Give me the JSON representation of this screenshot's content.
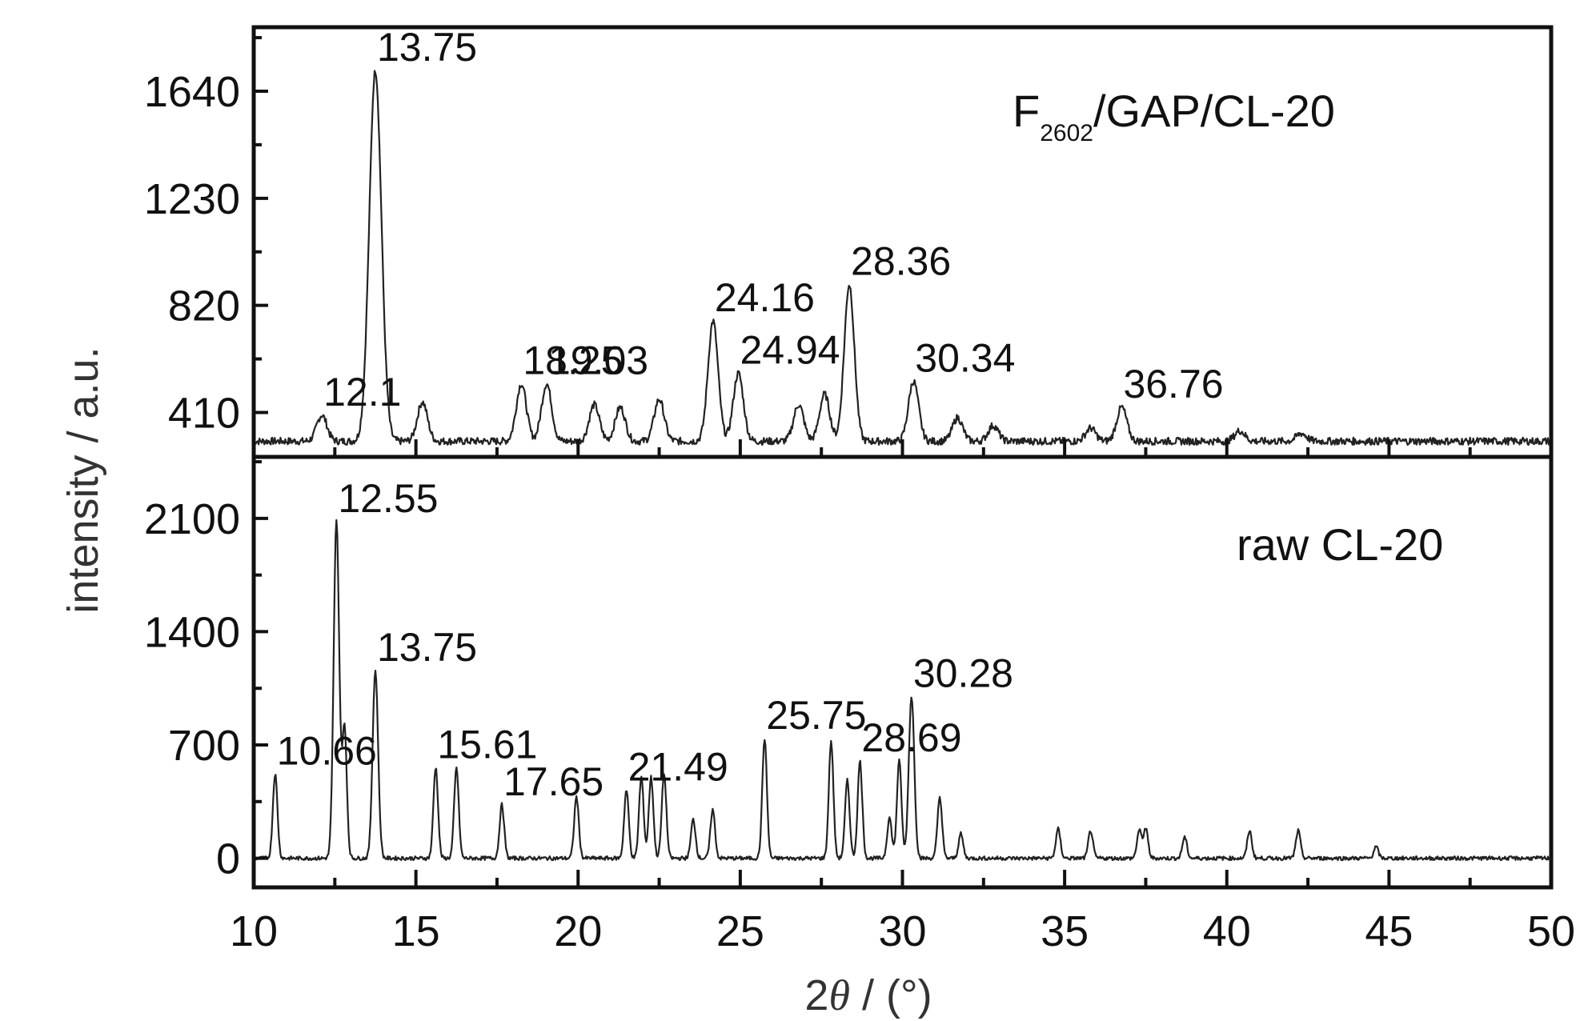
{
  "chart_data": [
    {
      "type": "line",
      "panel": "top",
      "series_label_main": "F",
      "series_label_sub": "2602",
      "series_label_rest": "/GAP/CL-20",
      "ylabel": "intensity / a.u.",
      "xlabel_prefix": "2",
      "xlabel_theta": "θ",
      "xlabel_suffix": " / (°)",
      "xlim": [
        10,
        50
      ],
      "ylim": [
        240,
        1885
      ],
      "y_ticks": [
        "410",
        "820",
        "1230",
        "1640"
      ],
      "x_ticks": [
        "10",
        "15",
        "20",
        "25",
        "30",
        "35",
        "40",
        "45",
        "50"
      ],
      "baseline": 300,
      "peaks": [
        {
          "x": 12.1,
          "y": 400,
          "label": "12.1"
        },
        {
          "x": 13.75,
          "y": 1720,
          "label": "13.75"
        },
        {
          "x": 15.2,
          "y": 450
        },
        {
          "x": 18.25,
          "y": 520,
          "label": "18.25"
        },
        {
          "x": 19.03,
          "y": 520,
          "label": "19.03"
        },
        {
          "x": 20.5,
          "y": 440
        },
        {
          "x": 21.3,
          "y": 430
        },
        {
          "x": 22.5,
          "y": 460
        },
        {
          "x": 24.16,
          "y": 760,
          "label": "24.16"
        },
        {
          "x": 24.94,
          "y": 560,
          "label": "24.94"
        },
        {
          "x": 26.8,
          "y": 440
        },
        {
          "x": 27.6,
          "y": 480
        },
        {
          "x": 28.36,
          "y": 900,
          "label": "28.36"
        },
        {
          "x": 30.34,
          "y": 530,
          "label": "30.34"
        },
        {
          "x": 31.7,
          "y": 390
        },
        {
          "x": 32.8,
          "y": 360
        },
        {
          "x": 35.8,
          "y": 350
        },
        {
          "x": 36.76,
          "y": 430,
          "label": "36.76"
        },
        {
          "x": 40.4,
          "y": 340
        },
        {
          "x": 42.3,
          "y": 330
        }
      ]
    },
    {
      "type": "line",
      "panel": "bottom",
      "series_label": "raw CL-20",
      "xlim": [
        10,
        50
      ],
      "ylim": [
        -180,
        2480
      ],
      "y_ticks": [
        "0",
        "700",
        "1400",
        "2100"
      ],
      "baseline": 0,
      "peaks": [
        {
          "x": 10.66,
          "y": 520,
          "label": "10.66"
        },
        {
          "x": 12.55,
          "y": 2080,
          "label": "12.55"
        },
        {
          "x": 12.8,
          "y": 800
        },
        {
          "x": 13.75,
          "y": 1160,
          "label": "13.75"
        },
        {
          "x": 15.61,
          "y": 560,
          "label": "15.61"
        },
        {
          "x": 16.25,
          "y": 560
        },
        {
          "x": 17.65,
          "y": 330,
          "label": "17.65"
        },
        {
          "x": 19.95,
          "y": 380
        },
        {
          "x": 21.49,
          "y": 420,
          "label": "21.49"
        },
        {
          "x": 21.95,
          "y": 500
        },
        {
          "x": 22.25,
          "y": 500
        },
        {
          "x": 22.65,
          "y": 520
        },
        {
          "x": 23.55,
          "y": 240
        },
        {
          "x": 24.15,
          "y": 300
        },
        {
          "x": 25.75,
          "y": 740,
          "label": "25.75"
        },
        {
          "x": 27.8,
          "y": 720
        },
        {
          "x": 28.3,
          "y": 480
        },
        {
          "x": 28.69,
          "y": 600,
          "label": "28.69"
        },
        {
          "x": 29.6,
          "y": 250
        },
        {
          "x": 29.9,
          "y": 600
        },
        {
          "x": 30.28,
          "y": 1000,
          "label": "30.28"
        },
        {
          "x": 31.15,
          "y": 380
        },
        {
          "x": 31.8,
          "y": 150
        },
        {
          "x": 34.8,
          "y": 180
        },
        {
          "x": 35.8,
          "y": 170
        },
        {
          "x": 37.3,
          "y": 170
        },
        {
          "x": 37.5,
          "y": 180
        },
        {
          "x": 38.7,
          "y": 130
        },
        {
          "x": 40.7,
          "y": 170
        },
        {
          "x": 42.2,
          "y": 170
        },
        {
          "x": 44.6,
          "y": 70
        }
      ]
    }
  ]
}
